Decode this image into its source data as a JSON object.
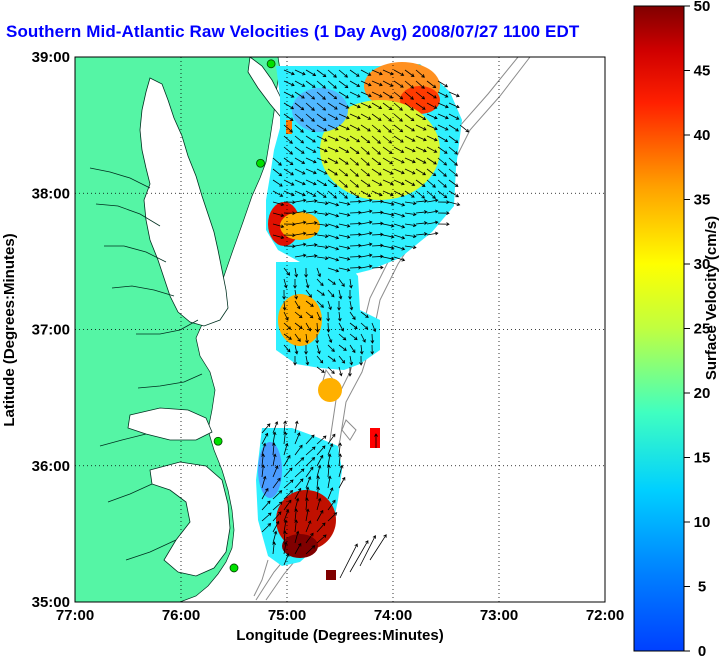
{
  "title": "Southern Mid-Atlantic Raw Velocities (1 Day Avg) 2008/07/27 1100 EDT",
  "xaxis": {
    "label": "Longitude (Degrees:Minutes)",
    "ticks": [
      "77:00",
      "76:00",
      "75:00",
      "74:00",
      "73:00",
      "72:00"
    ],
    "range": [
      -77,
      -72
    ]
  },
  "yaxis": {
    "label": "Latitude (Degrees:Minutes)",
    "ticks": [
      "39:00",
      "38:00",
      "37:00",
      "36:00",
      "35:00"
    ],
    "range": [
      35,
      39
    ]
  },
  "colorbar": {
    "label": "Surface Velocity (cm/s)",
    "ticks": [
      "50",
      "45",
      "40",
      "35",
      "30",
      "25",
      "20",
      "15",
      "10",
      "5",
      "0"
    ],
    "range": [
      0,
      50
    ],
    "colormap": "jet"
  },
  "colors": {
    "land": "#55f5a5",
    "ocean": "#ffffff",
    "title": "#0000ff",
    "station": "#00e000"
  },
  "stations": [
    {
      "lon": -75.15,
      "lat": 38.95
    },
    {
      "lon": -75.25,
      "lat": 38.22
    },
    {
      "lon": -75.65,
      "lat": 36.18
    },
    {
      "lon": -75.5,
      "lat": 35.25
    }
  ]
}
